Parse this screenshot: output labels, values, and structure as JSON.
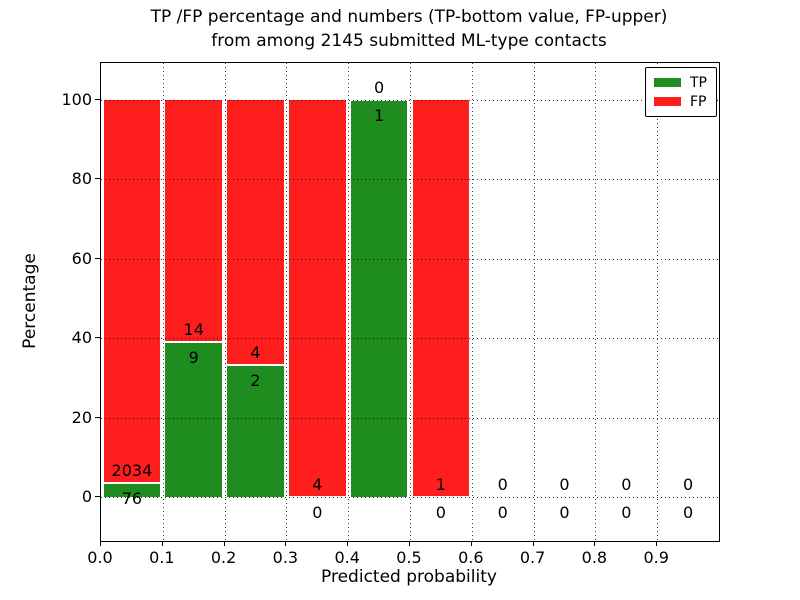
{
  "figure": {
    "title_line1": "TP /FP percentage and numbers (TP-bottom value, FP-upper)",
    "title_line2": "from among 2145 submitted ML-type contacts",
    "xlabel": "Predicted probability",
    "ylabel": "Percentage"
  },
  "legend": {
    "position": "upper right",
    "items": [
      {
        "label": "TP",
        "color": "#1f8c1f"
      },
      {
        "label": "FP",
        "color": "#ff1e1e"
      }
    ]
  },
  "colors": {
    "tp_green": "#1f8c1f",
    "fp_red": "#ff1e1e",
    "bar_edge": "#ffffff",
    "grid": "#000000"
  },
  "chart_data": {
    "type": "bar",
    "stacked": true,
    "normalized_to_percent": true,
    "grid": true,
    "title": "TP /FP percentage and numbers (TP-bottom value, FP-upper) from among 2145 submitted ML-type contacts",
    "xlabel": "Predicted probability",
    "ylabel": "Percentage",
    "total_contacts": 2145,
    "bin_edges": [
      0.0,
      0.1,
      0.2,
      0.3,
      0.4,
      0.5,
      0.6,
      0.7,
      0.8,
      0.9,
      1.0
    ],
    "categories": [
      "0.0-0.1",
      "0.1-0.2",
      "0.2-0.3",
      "0.3-0.4",
      "0.4-0.5",
      "0.5-0.6",
      "0.6-0.7",
      "0.7-0.8",
      "0.8-0.9",
      "0.9-1.0"
    ],
    "series": [
      {
        "name": "TP",
        "color": "#1f8c1f",
        "counts": [
          76,
          9,
          2,
          0,
          1,
          0,
          0,
          0,
          0,
          0
        ]
      },
      {
        "name": "FP",
        "color": "#ff1e1e",
        "counts": [
          2034,
          14,
          4,
          4,
          0,
          1,
          0,
          0,
          0,
          0
        ]
      }
    ],
    "tp_percent_of_bin": [
      3.6,
      39.1,
      33.3,
      0.0,
      100.0,
      0.0,
      null,
      null,
      null,
      null
    ],
    "x_ticks": [
      "0.0",
      "0.1",
      "0.2",
      "0.3",
      "0.4",
      "0.5",
      "0.6",
      "0.7",
      "0.8",
      "0.9"
    ],
    "y_ticks": [
      0,
      20,
      40,
      60,
      80,
      100
    ],
    "ylim_shown": [
      -11,
      109
    ],
    "xlim_shown": [
      0.0,
      1.0
    ]
  }
}
